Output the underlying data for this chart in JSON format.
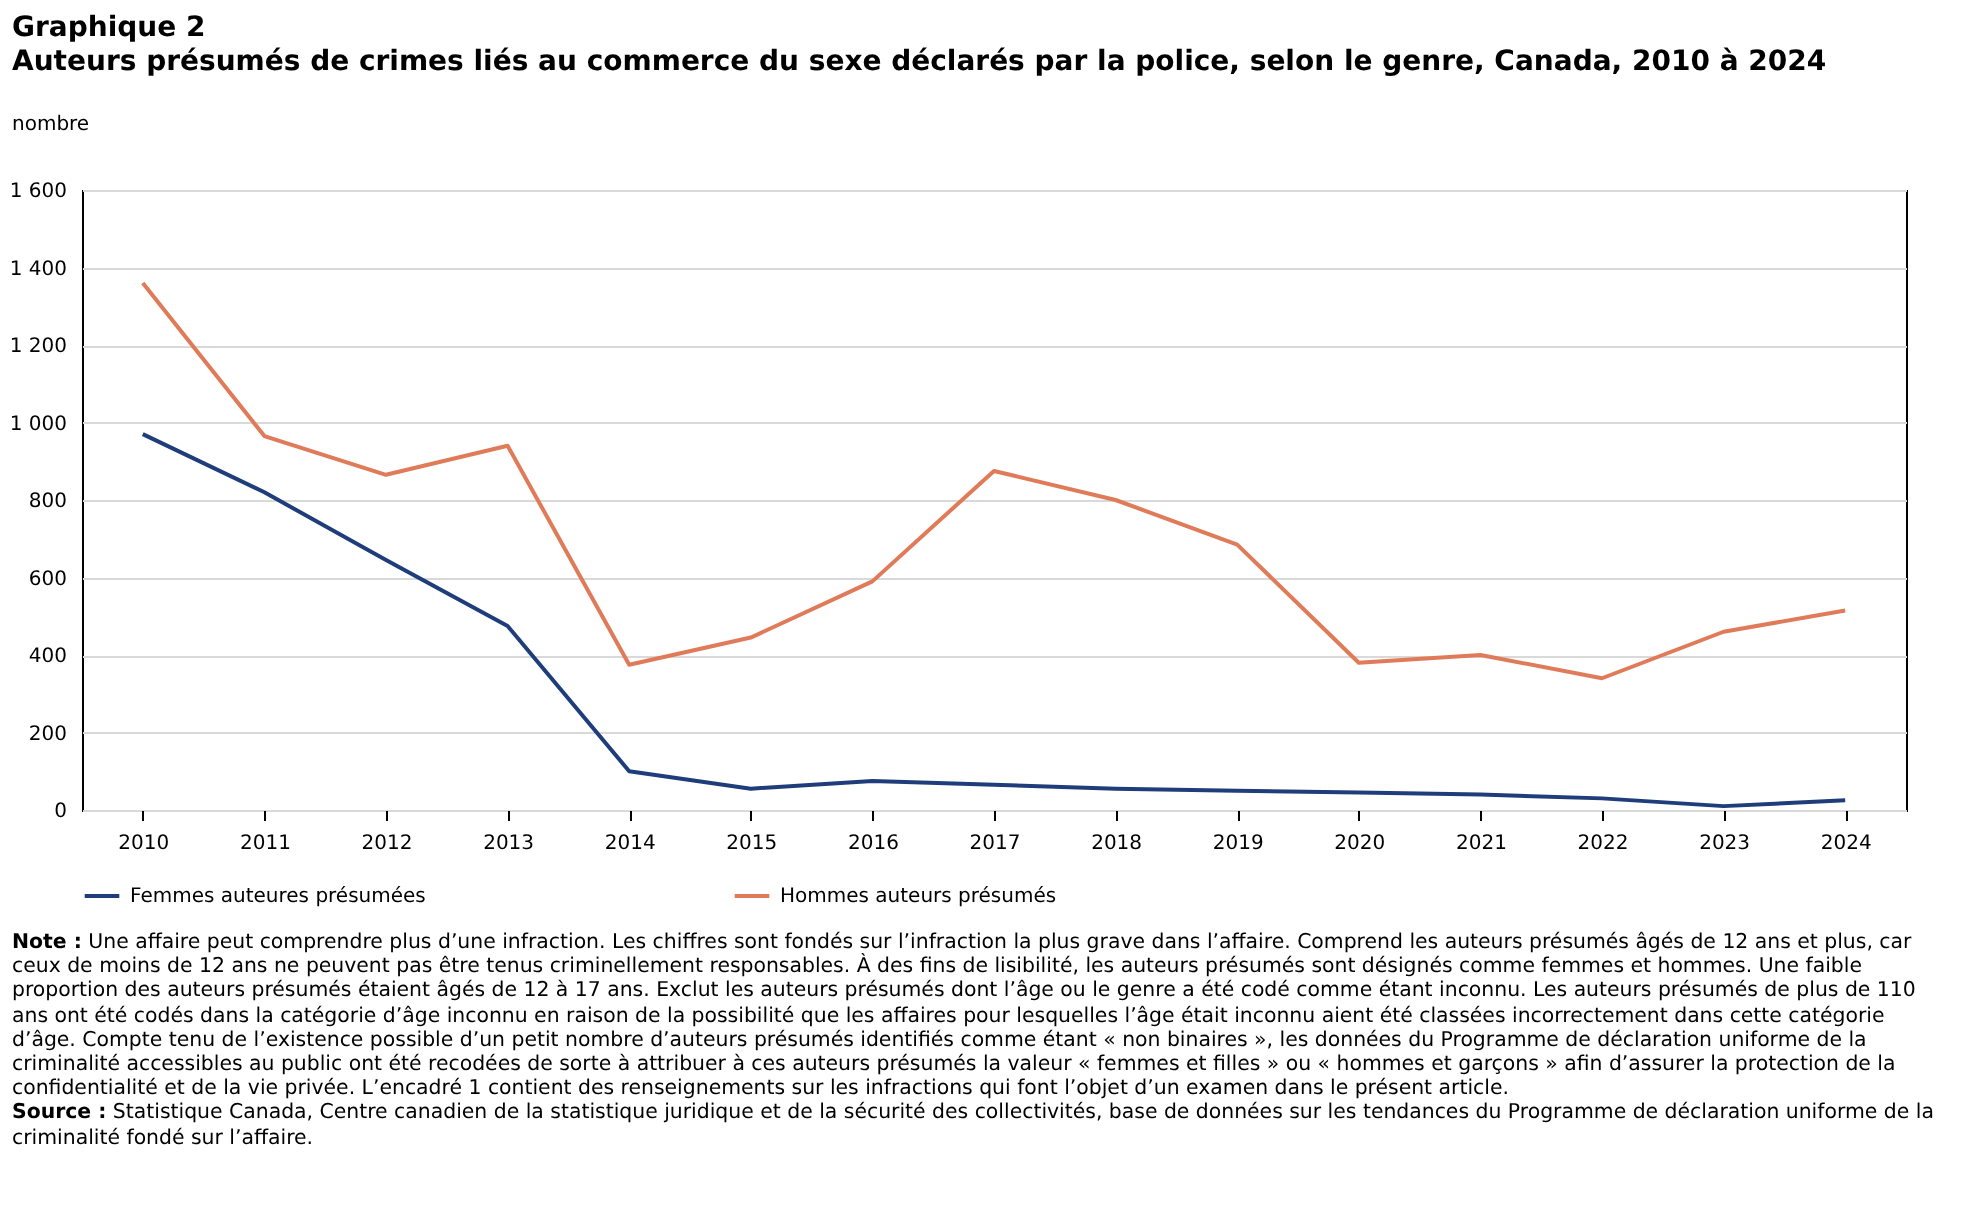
{
  "chart_data": {
    "type": "line",
    "title": "Graphique 2",
    "subtitle": "Auteurs présumés de crimes liés au commerce du sexe déclarés par la police, selon le genre, Canada, 2010 à 2024",
    "ylabel": "nombre",
    "categories": [
      "2010",
      "2011",
      "2012",
      "2013",
      "2014",
      "2015",
      "2016",
      "2017",
      "2018",
      "2019",
      "2020",
      "2021",
      "2022",
      "2023",
      "2024"
    ],
    "series": [
      {
        "name": "Femmes auteures présumées",
        "color": "#1f3d7a",
        "values": [
          970,
          820,
          645,
          475,
          100,
          55,
          75,
          65,
          55,
          50,
          45,
          40,
          30,
          10,
          25
        ]
      },
      {
        "name": "Hommes auteurs présumés",
        "color": "#e07b5a",
        "values": [
          1360,
          965,
          865,
          940,
          375,
          445,
          590,
          875,
          800,
          685,
          380,
          400,
          340,
          460,
          515
        ]
      }
    ],
    "ylim": [
      0,
      1600
    ],
    "yticks": [
      0,
      200,
      400,
      600,
      800,
      {
        "value": 1000,
        "label": "1 000"
      },
      {
        "value": 1200,
        "label": "1 200"
      },
      {
        "value": 1400,
        "label": "1 400"
      },
      {
        "value": 1600,
        "label": "1 600"
      }
    ],
    "grid": "y",
    "legend": "bottom",
    "annotations": [
      "Note : Une affaire peut comprendre plus d’une infraction. Les chiffres sont fondés sur l’infraction la plus grave dans l’affaire. Comprend les auteurs présumés âgés de 12 ans et plus, car ceux de moins de 12 ans ne peuvent pas être tenus criminellement responsables. À des fins de lisibilité, les auteurs présumés sont désignés comme femmes et hommes. Une faible proportion des auteurs présumés étaient âgés de 12 à 17 ans. Exclut les auteurs présumés dont l’âge ou le genre a été codé comme étant inconnu. Les auteurs présumés de plus de 110 ans ont été codés dans la catégorie d’âge inconnu en raison de la possibilité que les affaires pour lesquelles l’âge était inconnu aient été classées incorrectement dans cette catégorie d’âge. Compte tenu de l’existence possible d’un petit nombre d’auteurs présumés identifiés comme étant « non binaires », les données du Programme de déclaration uniforme de la criminalité accessibles au public ont été recodées de sorte à attribuer à ces auteurs présumés la valeur « femmes et filles » ou « hommes et garçons » afin d’assurer la protection de la confidentialité et de la vie privée. L’encadré 1 contient des renseignements sur les infractions qui font l’objet d’un examen dans le présent article.",
      "Source : Statistique Canada, Centre canadien de la statistique juridique et de la sécurité des collectivités, base de données sur les tendances du Programme de déclaration uniforme de la criminalité fondé sur l’affaire."
    ]
  }
}
